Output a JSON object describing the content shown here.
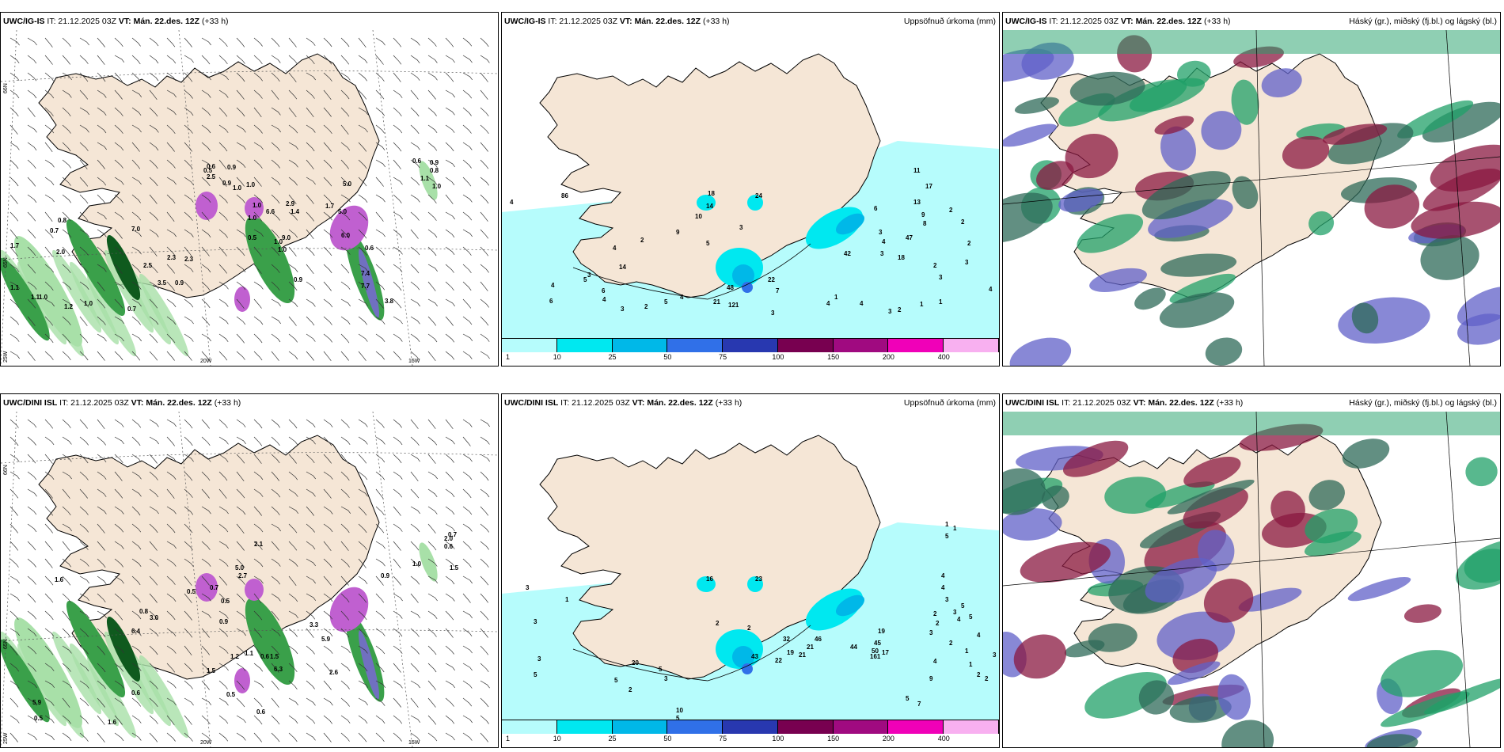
{
  "rows": [
    {
      "model": "UWC/IG-IS",
      "it_label": "IT: 21.12.2025 03Z",
      "vt_label": "VT: Mán. 22.des. 12Z",
      "offset": "(+33 h)",
      "precip_values": [
        "86",
        "18",
        "24",
        "14",
        "10",
        "3",
        "5",
        "9",
        "4",
        "2",
        "4",
        "14",
        "3",
        "5",
        "4",
        "6",
        "6",
        "4",
        "3",
        "2",
        "5",
        "4",
        "48",
        "22",
        "7",
        "121",
        "21",
        "3",
        "4",
        "4",
        "3",
        "2",
        "1",
        "1",
        "2",
        "3",
        "6",
        "11",
        "17",
        "13",
        "9",
        "8",
        "47",
        "18",
        "42",
        "4",
        "3",
        "3",
        "1",
        "2",
        "2",
        "2",
        "3",
        "4"
      ],
      "wind_values": [
        "0.8",
        "0.7",
        "2.0",
        "7.0",
        "2.3",
        "2.5",
        "3.5",
        "2.3",
        "0.9",
        "1.7",
        "1.1",
        "1.2",
        "1.0",
        "0.7",
        "1.1",
        "1.0",
        "0.6",
        "0.9",
        "1.0",
        "0.9",
        "0.5",
        "2.5",
        "1.4",
        "6.6",
        "2.9",
        "1.0",
        "1.0",
        "1.0",
        "9.0",
        "1.0",
        "0.5",
        "1.7",
        "5.0",
        "0.9",
        "1.0",
        "5.0",
        "6.0",
        "0.6",
        "7.4",
        "7.7",
        "3.8",
        "1.1",
        "0.6",
        "0.9",
        "1.0",
        "0.8"
      ]
    },
    {
      "model": "UWC/DINI ISL",
      "it_label": "IT: 21.12.2025 03Z",
      "vt_label": "VT: Mán. 22.des. 12Z",
      "offset": "(+33 h)",
      "precip_values": [
        "3",
        "1",
        "16",
        "23",
        "3",
        "2",
        "2",
        "3",
        "5",
        "20",
        "5",
        "3",
        "5",
        "2",
        "10",
        "9",
        "5",
        "43",
        "22",
        "19",
        "32",
        "21",
        "46",
        "21",
        "44",
        "50",
        "45",
        "19",
        "17",
        "161",
        "24",
        "3",
        "5",
        "7",
        "9",
        "4",
        "2",
        "1",
        "1",
        "2",
        "2",
        "3",
        "4",
        "5",
        "5",
        "3",
        "3",
        "4",
        "4",
        "4",
        "2",
        "2",
        "3",
        "5",
        "1",
        "1"
      ],
      "wind_values": [
        "1.6",
        "0.8",
        "3.0",
        "6.4",
        "0.5",
        "0.7",
        "0.5",
        "5.0",
        "2.7",
        "2.1",
        "0.9",
        "1.2",
        "1.1",
        "1.5",
        "0.6",
        "6.3",
        "2.6",
        "3.3",
        "5.9",
        "5.9",
        "0.5",
        "1.6",
        "0.6",
        "1.5",
        "0.5",
        "0.6",
        "0.9",
        "1.0",
        "2.0",
        "0.7",
        "0.6",
        "1.5"
      ]
    }
  ],
  "precip_title": "Uppsöfnuð úrkoma (mm)",
  "cloud_title": "Háský (gr.), miðský (fj.bl.) og lágský (bl.)",
  "scale": {
    "ticks": [
      "1",
      "10",
      "25",
      "50",
      "75",
      "100",
      "150",
      "200",
      "400"
    ],
    "colors": [
      "#b6fcfc",
      "#00e8f0",
      "#00b8e8",
      "#3070e8",
      "#2838b0",
      "#780050",
      "#a00a80",
      "#f000b8",
      "#f8b0f0"
    ]
  },
  "grid": {
    "lat_label": "65N",
    "lat2_label": "64N",
    "lat3_label": "66N",
    "lon_label_20": "20W",
    "lon_label_15": "15W",
    "lon_label_25": "25W"
  },
  "colors": {
    "land": "#f5e6d6",
    "sea": "#ffffff",
    "precip_light": "#b6fcfc",
    "wind_green_dark": "#0f5a1e",
    "wind_green": "#3aa04a",
    "wind_green_light": "#a8e0a8",
    "purple": "#c060d0",
    "cloud_low": "#2d6a58",
    "cloud_mid": "#6060c8",
    "cloud_high": "#20a068",
    "cloud_red": "#8a1840"
  }
}
